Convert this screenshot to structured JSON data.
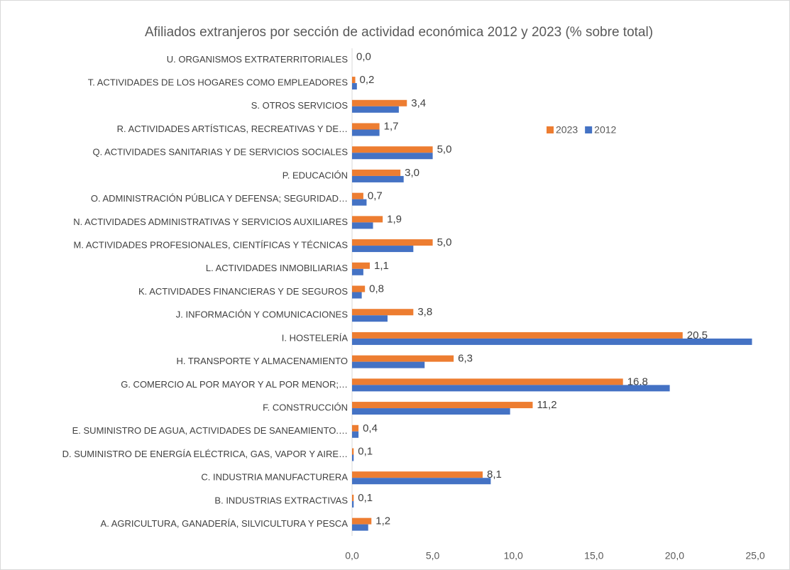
{
  "chart_data": {
    "type": "bar",
    "orientation": "horizontal",
    "title": "Afiliados extranjeros por sección de actividad económica 2012 y 2023 (% sobre total)",
    "categories": [
      "A. AGRICULTURA, GANADERÍA, SILVICULTURA Y PESCA",
      "B. INDUSTRIAS EXTRACTIVAS",
      "C. INDUSTRIA MANUFACTURERA",
      "D. SUMINISTRO DE ENERGÍA ELÉCTRICA, GAS, VAPOR Y AIRE…",
      "E. SUMINISTRO DE AGUA, ACTIVIDADES DE SANEAMIENTO.…",
      "F. CONSTRUCCIÓN",
      "G. COMERCIO AL POR MAYOR Y AL POR MENOR;…",
      "H. TRANSPORTE Y ALMACENAMIENTO",
      "I. HOSTELERÍA",
      "J. INFORMACIÓN Y COMUNICACIONES",
      "K. ACTIVIDADES FINANCIERAS Y DE SEGUROS",
      "L. ACTIVIDADES INMOBILIARIAS",
      "M. ACTIVIDADES PROFESIONALES, CIENTÍFICAS Y TÉCNICAS",
      "N. ACTIVIDADES ADMINISTRATIVAS Y SERVICIOS AUXILIARES",
      "O. ADMINISTRACIÓN PÚBLICA Y DEFENSA; SEGURIDAD…",
      "P. EDUCACIÓN",
      "Q. ACTIVIDADES SANITARIAS Y DE SERVICIOS SOCIALES",
      "R. ACTIVIDADES ARTÍSTICAS, RECREATIVAS Y DE…",
      "S. OTROS SERVICIOS",
      "T. ACTIVIDADES DE LOS HOGARES COMO EMPLEADORES",
      "U. ORGANISMOS EXTRATERRITORIALES"
    ],
    "series": [
      {
        "name": "2023",
        "color": "#ed7d31",
        "values": [
          1.2,
          0.1,
          8.1,
          0.1,
          0.4,
          11.2,
          16.8,
          6.3,
          20.5,
          3.8,
          0.8,
          1.1,
          5.0,
          1.9,
          0.7,
          3.0,
          5.0,
          1.7,
          3.4,
          0.2,
          0.0
        ],
        "value_labels": [
          "1,2",
          "0,1",
          "8,1",
          "0,1",
          "0,4",
          "11,2",
          "16,8",
          "6,3",
          "20,5",
          "3,8",
          "0,8",
          "1,1",
          "5,0",
          "1,9",
          "0,7",
          "3,0",
          "5,0",
          "1,7",
          "3,4",
          "0,2",
          "0,0"
        ]
      },
      {
        "name": "2012",
        "color": "#4472c4",
        "values": [
          1.0,
          0.1,
          8.6,
          0.1,
          0.4,
          9.8,
          19.7,
          4.5,
          24.8,
          2.2,
          0.6,
          0.7,
          3.8,
          1.3,
          0.9,
          3.2,
          5.0,
          1.7,
          2.9,
          0.3,
          0.0
        ]
      }
    ],
    "xlim": [
      0,
      25
    ],
    "xticks": [
      {
        "value": 0,
        "label": "0,0"
      },
      {
        "value": 5,
        "label": "5,0"
      },
      {
        "value": 10,
        "label": "10,0"
      },
      {
        "value": 15,
        "label": "15,0"
      },
      {
        "value": 20,
        "label": "20,0"
      },
      {
        "value": 25,
        "label": "25,0"
      }
    ],
    "legend": "upper right",
    "grid": false
  }
}
